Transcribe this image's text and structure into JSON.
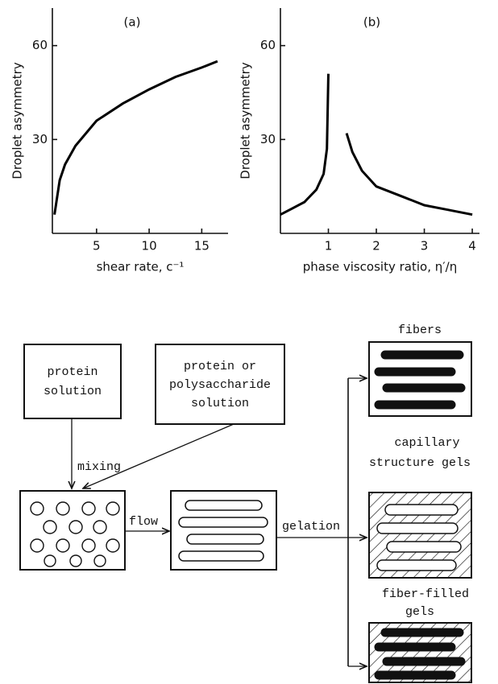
{
  "chart_data": [
    {
      "type": "line",
      "title": "(a)",
      "x_label": "shear rate, c⁻¹",
      "y_label": "Droplet asymmetry",
      "x": [
        1,
        1.5,
        2,
        3,
        5,
        7.5,
        10,
        12.5,
        15,
        16.5
      ],
      "values": [
        6,
        17,
        22,
        28,
        36,
        41.5,
        46,
        50,
        53,
        55
      ],
      "color": "#000000",
      "xlim": [
        0.8,
        17.5
      ],
      "ylim": [
        0,
        72
      ],
      "xticks": [
        5,
        10,
        15
      ],
      "yticks": [
        30,
        60
      ],
      "grid": false
    },
    {
      "type": "line",
      "title": "(b)",
      "x_label": "phase viscosity ratio, η′/η",
      "y_label": "Droplet asymmetry",
      "x": [
        0,
        0.25,
        0.5,
        0.75,
        0.9,
        0.97,
        1.0,
        1.2,
        1.38,
        1.5,
        1.7,
        2,
        2.5,
        3,
        3.5,
        4
      ],
      "values": [
        6,
        8,
        10,
        14,
        19,
        27,
        51,
        null,
        32,
        26,
        20,
        15,
        12,
        9,
        7.5,
        6
      ],
      "color": "#000000",
      "xlim": [
        0,
        4.15
      ],
      "ylim": [
        0,
        72
      ],
      "xticks": [
        1,
        2,
        3,
        4
      ],
      "yticks": [
        30,
        60
      ],
      "grid": false
    }
  ],
  "diagram": {
    "source_1": [
      "protein",
      "solution"
    ],
    "source_2": [
      "protein or",
      "polysaccharide",
      "solution"
    ],
    "steps": [
      "mixing",
      "flow",
      "gelation"
    ],
    "product_1": [
      "fibers"
    ],
    "product_2": [
      "capillary",
      "structure gels"
    ],
    "product_3": [
      "fiber-filled",
      "gels"
    ]
  }
}
